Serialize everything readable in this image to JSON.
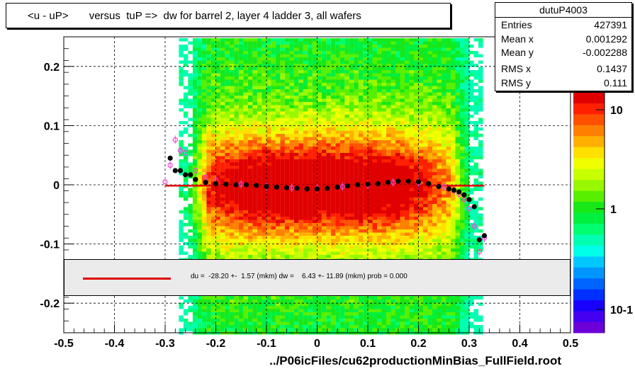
{
  "title": "<u - uP>       versus  tuP =>  dw for barrel 2, layer 4 ladder 3, all wafers",
  "stats": {
    "name": "dutuP4003",
    "rows": [
      {
        "key": "Entries",
        "value": "427391"
      },
      {
        "key": "Mean x",
        "value": "0.001292"
      },
      {
        "key": "Mean y",
        "value": "-0.002288"
      },
      {
        "key": "RMS x",
        "value": "0.1437"
      },
      {
        "key": "RMS y",
        "value": "0.111"
      }
    ]
  },
  "legend_text": "du =  -28.20 +-  1.57 (mkm) dw =    6.43 +- 11.89 (mkm) prob = 0.000",
  "x_axis_title": "../P06icFiles/cu62productionMinBias_FullField.root",
  "chart_data": {
    "type": "heatmap",
    "xlim": [
      -0.5,
      0.5
    ],
    "ylim": [
      -0.25,
      0.25
    ],
    "x_ticks": [
      "-0.5",
      "-0.4",
      "-0.3",
      "-0.2",
      "-0.1",
      "0",
      "0.1",
      "0.2",
      "0.3",
      "0.4",
      "0.5"
    ],
    "y_ticks": [
      "-0.2",
      "-0.1",
      "0",
      "0.1",
      "0.2"
    ],
    "grid": true,
    "color_scale": {
      "type": "log",
      "labels": [
        "10",
        "1",
        "10-1"
      ]
    },
    "occupied_x_range": [
      -0.27,
      0.31
    ],
    "fit_line": {
      "x": [
        -0.3,
        0.33
      ],
      "y": [
        -0.0015,
        -0.0015
      ],
      "color": "#e00000"
    },
    "profile_black": {
      "x": [
        -0.29,
        -0.28,
        -0.27,
        -0.26,
        -0.25,
        -0.24,
        -0.22,
        -0.2,
        -0.18,
        -0.16,
        -0.14,
        -0.12,
        -0.1,
        -0.08,
        -0.06,
        -0.04,
        -0.02,
        0.0,
        0.02,
        0.04,
        0.06,
        0.08,
        0.1,
        0.12,
        0.14,
        0.16,
        0.18,
        0.2,
        0.22,
        0.24,
        0.26,
        0.27,
        0.28,
        0.29,
        0.3,
        0.31,
        0.32,
        0.33
      ],
      "y": [
        0.045,
        0.024,
        0.024,
        0.017,
        0.017,
        0.009,
        0.004,
        0.002,
        0.001,
        0.0,
        0.0,
        -0.001,
        -0.003,
        -0.004,
        -0.005,
        -0.006,
        -0.007,
        -0.007,
        -0.006,
        -0.004,
        -0.002,
        0.0,
        0.001,
        0.002,
        0.004,
        0.006,
        0.006,
        0.005,
        0.002,
        -0.003,
        -0.007,
        -0.009,
        -0.012,
        -0.017,
        -0.025,
        -0.037,
        -0.093,
        -0.086
      ]
    },
    "profile_pink": {
      "x": [
        -0.3,
        -0.29,
        -0.28,
        -0.27,
        -0.26,
        -0.24,
        -0.22,
        -0.2,
        -0.15,
        -0.1,
        -0.05,
        0.0,
        0.05,
        0.1,
        0.15,
        0.2,
        0.25,
        0.27,
        0.28,
        0.29,
        0.3,
        0.31,
        0.32,
        0.33
      ],
      "y": [
        0.005,
        0.033,
        0.076,
        0.058,
        0.054,
        0.024,
        0.013,
        0.008,
        0.001,
        -0.003,
        -0.005,
        -0.006,
        -0.003,
        0.0,
        0.004,
        0.004,
        -0.003,
        -0.01,
        -0.016,
        -0.025,
        -0.04,
        -0.07,
        -0.113,
        -0.09
      ]
    }
  }
}
